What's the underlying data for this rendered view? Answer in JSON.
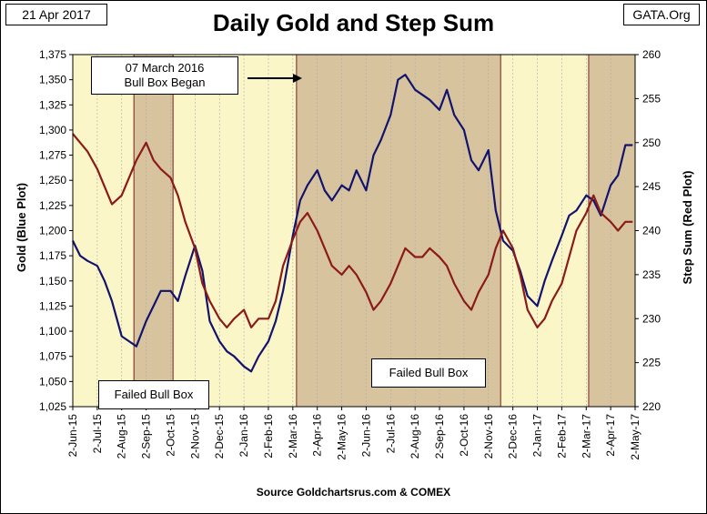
{
  "header": {
    "date_label": "21 Apr 2017",
    "title": "Daily Gold and Step Sum",
    "source_label": "GATA.Org"
  },
  "footer": {
    "source_text": "Source Goldchartsrus.com & COMEX"
  },
  "annotations": {
    "bull_box_began_line1": "07 March 2016",
    "bull_box_began_line2": "Bull Box Began",
    "failed_left": "Failed Bull Box",
    "failed_mid": "Failed Bull Box"
  },
  "colors": {
    "gold_line": "#13136e",
    "step_line": "#8b1a1a",
    "plot_bg": "#fbf6c8",
    "box_fill": "#d7c49e",
    "box_edge": "#7a2020"
  },
  "chart_data": {
    "type": "line",
    "title": "Daily Gold and Step Sum",
    "ylabel": "Gold   (Blue Plot)",
    "y2label": "Step Sum   (Red Plot)",
    "ylim": [
      1025,
      1375
    ],
    "y2lim": [
      220,
      260
    ],
    "yticks": [
      "1,025",
      "1,050",
      "1,075",
      "1,100",
      "1,125",
      "1,150",
      "1,175",
      "1,200",
      "1,225",
      "1,250",
      "1,275",
      "1,300",
      "1,325",
      "1,350",
      "1,375"
    ],
    "y2ticks": [
      "220",
      "225",
      "230",
      "235",
      "240",
      "245",
      "250",
      "255",
      "260"
    ],
    "xticks": [
      "2-Jun-15",
      "2-Jul-15",
      "2-Aug-15",
      "2-Sep-15",
      "2-Oct-15",
      "2-Nov-15",
      "2-Dec-15",
      "2-Jan-16",
      "2-Feb-16",
      "2-Mar-16",
      "2-Apr-16",
      "2-May-16",
      "2-Jun-16",
      "2-Jul-16",
      "2-Aug-16",
      "2-Sep-16",
      "2-Oct-16",
      "2-Nov-16",
      "2-Dec-16",
      "2-Jan-17",
      "2-Feb-17",
      "2-Mar-17",
      "2-Apr-17",
      "2-May-17"
    ],
    "shaded_boxes": [
      {
        "start": 2.5,
        "end": 4.1
      },
      {
        "start": 9.15,
        "end": 17.5
      },
      {
        "start": 21.1,
        "end": 23.0
      }
    ],
    "series": [
      {
        "name": "Gold",
        "axis": "left",
        "x": [
          0,
          0.3,
          0.6,
          1.0,
          1.3,
          1.6,
          2.0,
          2.3,
          2.6,
          3.0,
          3.3,
          3.6,
          4.0,
          4.3,
          4.6,
          5.0,
          5.3,
          5.6,
          6.0,
          6.3,
          6.6,
          7.0,
          7.3,
          7.6,
          8.0,
          8.3,
          8.6,
          9.0,
          9.3,
          9.6,
          10.0,
          10.3,
          10.6,
          11.0,
          11.3,
          11.6,
          12.0,
          12.3,
          12.6,
          13.0,
          13.3,
          13.6,
          14.0,
          14.3,
          14.6,
          15.0,
          15.3,
          15.6,
          16.0,
          16.3,
          16.6,
          17.0,
          17.3,
          17.6,
          18.0,
          18.3,
          18.6,
          19.0,
          19.3,
          19.6,
          20.0,
          20.3,
          20.6,
          21.0,
          21.3,
          21.6,
          22.0,
          22.3,
          22.6,
          22.9
        ],
        "values": [
          1190,
          1175,
          1170,
          1165,
          1150,
          1130,
          1095,
          1090,
          1085,
          1110,
          1125,
          1140,
          1140,
          1130,
          1155,
          1185,
          1160,
          1110,
          1090,
          1080,
          1075,
          1065,
          1060,
          1075,
          1090,
          1110,
          1140,
          1195,
          1230,
          1245,
          1260,
          1240,
          1230,
          1245,
          1240,
          1260,
          1240,
          1275,
          1290,
          1315,
          1350,
          1355,
          1340,
          1335,
          1330,
          1320,
          1340,
          1315,
          1300,
          1270,
          1260,
          1280,
          1220,
          1190,
          1180,
          1160,
          1135,
          1125,
          1150,
          1170,
          1195,
          1215,
          1220,
          1235,
          1230,
          1215,
          1245,
          1255,
          1285,
          1285
        ]
      },
      {
        "name": "Step Sum",
        "axis": "right",
        "x": [
          0,
          0.3,
          0.6,
          1.0,
          1.3,
          1.6,
          2.0,
          2.3,
          2.6,
          3.0,
          3.3,
          3.6,
          4.0,
          4.3,
          4.6,
          5.0,
          5.3,
          5.6,
          6.0,
          6.3,
          6.6,
          7.0,
          7.3,
          7.6,
          8.0,
          8.3,
          8.6,
          9.0,
          9.3,
          9.6,
          10.0,
          10.3,
          10.6,
          11.0,
          11.3,
          11.6,
          12.0,
          12.3,
          12.6,
          13.0,
          13.3,
          13.6,
          14.0,
          14.3,
          14.6,
          15.0,
          15.3,
          15.6,
          16.0,
          16.3,
          16.6,
          17.0,
          17.3,
          17.6,
          18.0,
          18.3,
          18.6,
          19.0,
          19.3,
          19.6,
          20.0,
          20.3,
          20.6,
          21.0,
          21.3,
          21.6,
          22.0,
          22.3,
          22.6,
          22.9
        ],
        "values": [
          251,
          250,
          249,
          247,
          245,
          243,
          244,
          246,
          248,
          250,
          248,
          247,
          246,
          244,
          241,
          238,
          234,
          232,
          230,
          229,
          230,
          231,
          229,
          230,
          230,
          232,
          236,
          239,
          241,
          242,
          240,
          238,
          236,
          235,
          236,
          235,
          233,
          231,
          232,
          234,
          236,
          238,
          237,
          237,
          238,
          237,
          236,
          234,
          232,
          231,
          233,
          235,
          238,
          240,
          238,
          235,
          231,
          229,
          230,
          232,
          234,
          237,
          240,
          242,
          244,
          242,
          241,
          240,
          241,
          241
        ]
      }
    ]
  }
}
